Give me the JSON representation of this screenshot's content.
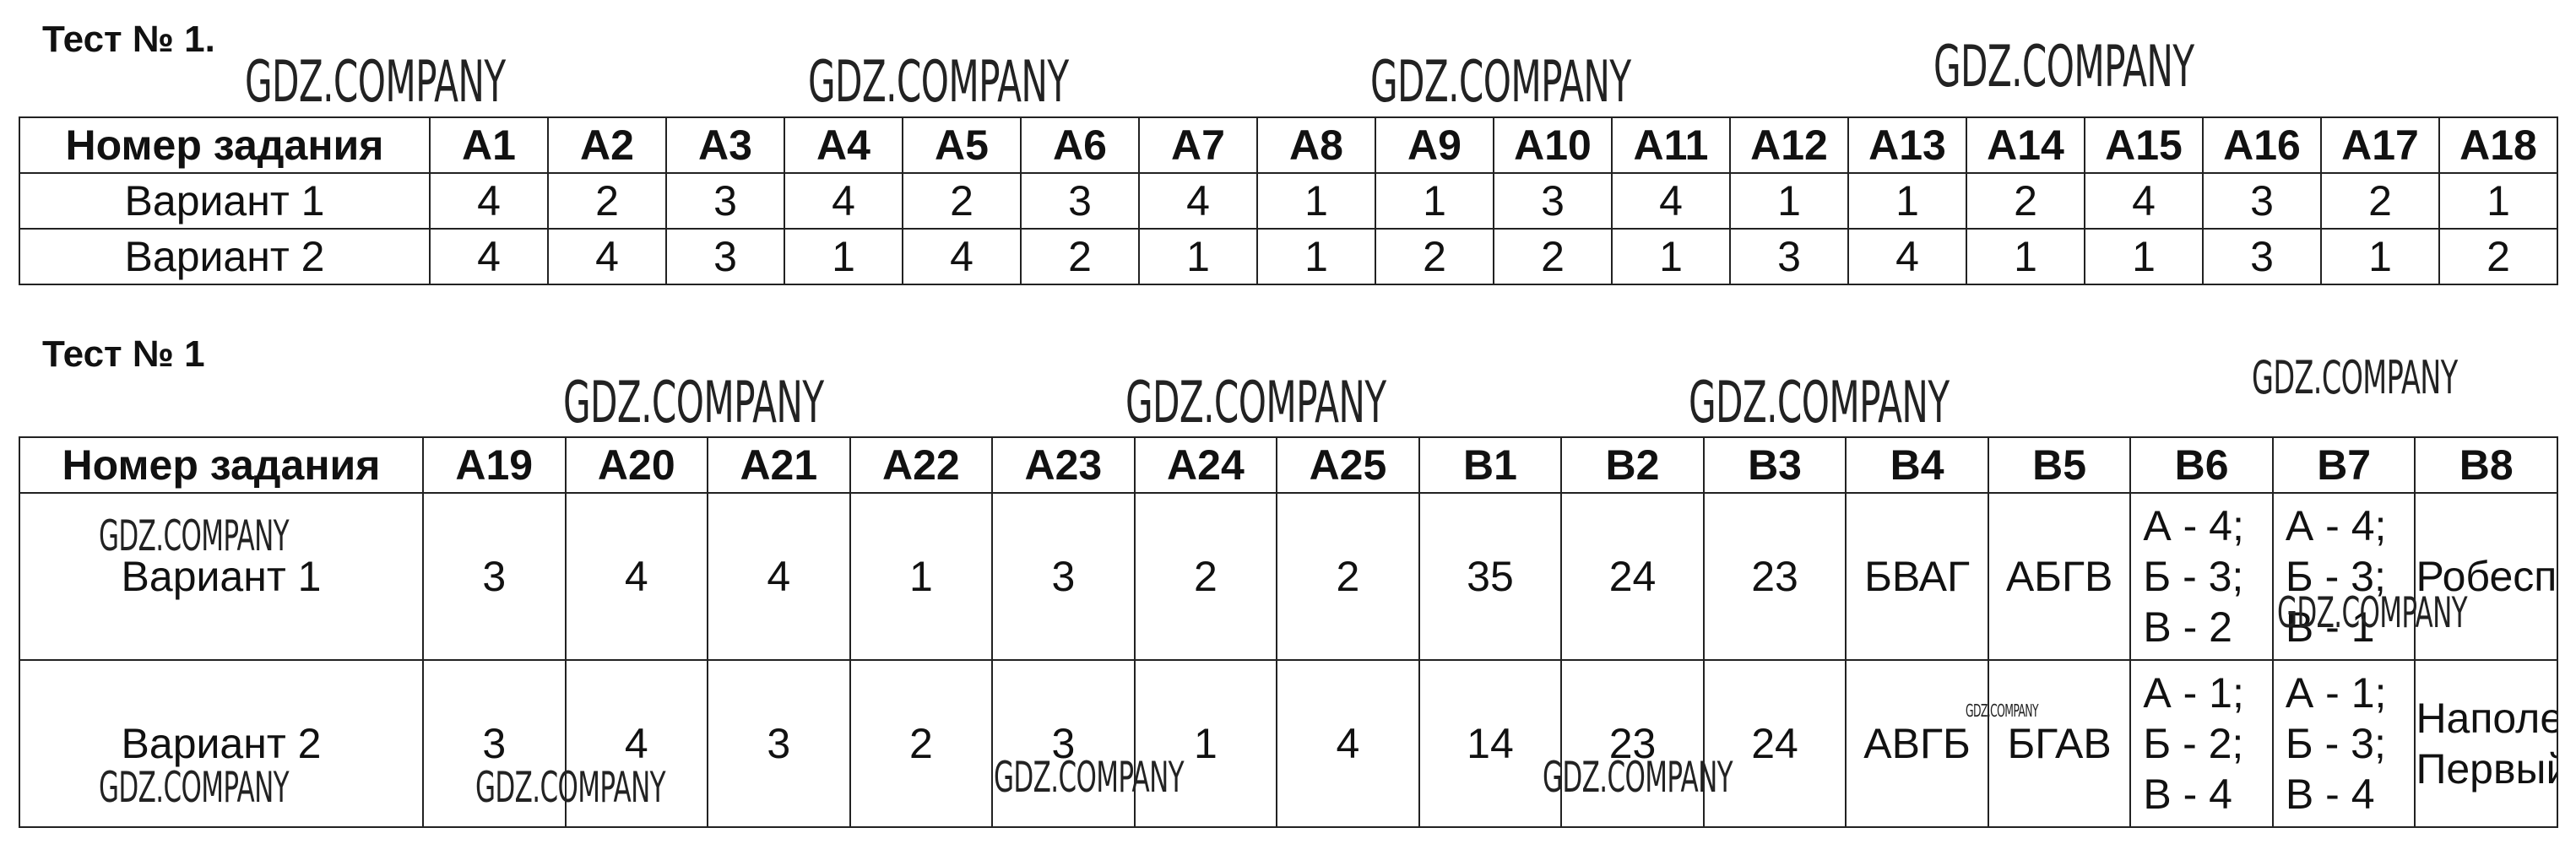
{
  "tests": [
    {
      "title": "Тест № 1.",
      "header": [
        "Номер задания",
        "А1",
        "А2",
        "А3",
        "А4",
        "А5",
        "А6",
        "А7",
        "А8",
        "А9",
        "А10",
        "А11",
        "А12",
        "А13",
        "А14",
        "А15",
        "А16",
        "А17",
        "А18"
      ],
      "rows": [
        [
          "Вариант 1",
          "4",
          "2",
          "3",
          "4",
          "2",
          "3",
          "4",
          "1",
          "1",
          "3",
          "4",
          "1",
          "1",
          "2",
          "4",
          "3",
          "2",
          "1"
        ],
        [
          "Вариант 2",
          "4",
          "4",
          "3",
          "1",
          "4",
          "2",
          "1",
          "1",
          "2",
          "2",
          "1",
          "3",
          "4",
          "1",
          "1",
          "3",
          "1",
          "2"
        ]
      ]
    },
    {
      "title": "Тест № 1",
      "header": [
        "Номер задания",
        "А19",
        "А20",
        "А21",
        "А22",
        "А23",
        "А24",
        "А25",
        "В1",
        "В2",
        "В3",
        "В4",
        "В5",
        "В6",
        "В7",
        "В8"
      ],
      "rows": [
        [
          "Вариант 1",
          "3",
          "4",
          "4",
          "1",
          "3",
          "2",
          "2",
          "35",
          "24",
          "23",
          "БВАГ",
          "АБГВ",
          [
            "А - 4;",
            "Б - 3;",
            "В - 2"
          ],
          [
            "А - 4;",
            "Б - 3;",
            "В - 1"
          ],
          "Робеспьер"
        ],
        [
          "Вариант 2",
          "3",
          "4",
          "3",
          "2",
          "3",
          "1",
          "4",
          "14",
          "23",
          "24",
          "АВГБ",
          "БГАВ",
          [
            "А - 1;",
            "Б - 2;",
            "В - 4"
          ],
          [
            "А - 1;",
            "Б - 3;",
            "В - 4"
          ],
          [
            "Наполеон",
            "Первый"
          ]
        ]
      ]
    }
  ],
  "watermark": "GDZ.COMPANY"
}
